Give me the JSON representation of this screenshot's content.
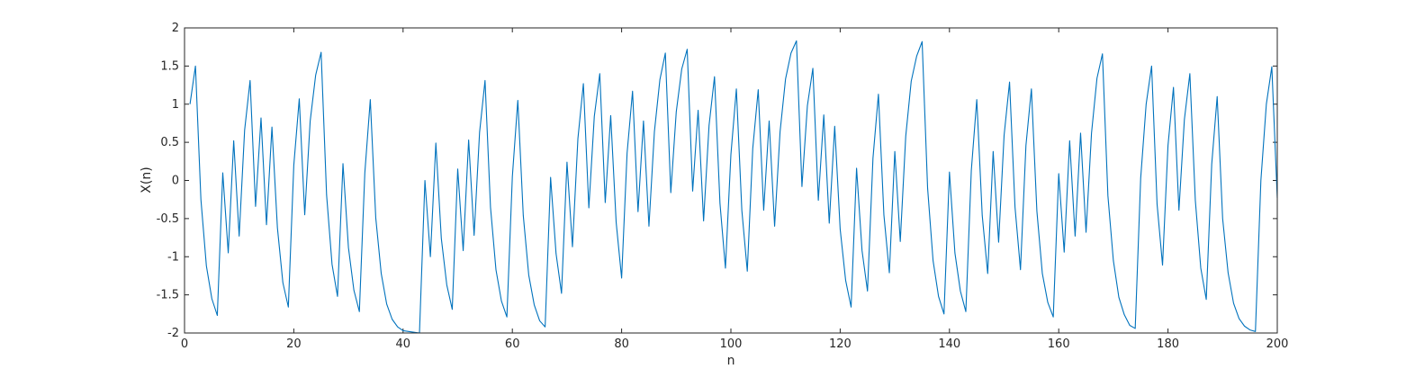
{
  "chart_data": {
    "type": "line",
    "title": "",
    "xlabel": "n",
    "ylabel": "X(n)",
    "xlim": [
      0,
      200
    ],
    "ylim": [
      -2,
      2
    ],
    "xticks": [
      0,
      20,
      40,
      60,
      80,
      100,
      120,
      140,
      160,
      180,
      200
    ],
    "xtick_labels": [
      "0",
      "20",
      "40",
      "60",
      "80",
      "100",
      "120",
      "140",
      "160",
      "180",
      "200"
    ],
    "yticks": [
      -2,
      -1.5,
      -1,
      -0.5,
      0,
      0.5,
      1,
      1.5,
      2
    ],
    "ytick_labels": [
      "-2",
      "-1.5",
      "-1",
      "-0.5",
      "0",
      "0.5",
      "1",
      "1.5",
      "2"
    ],
    "grid": false,
    "box": true,
    "line_color": "#0072bd",
    "axis_color": "#262626",
    "series": [
      {
        "x": [
          1,
          2,
          3,
          4,
          5,
          6,
          7,
          8,
          9,
          10,
          11,
          12,
          13,
          14,
          15,
          16,
          17,
          18,
          19,
          20,
          21,
          22,
          23,
          24,
          25,
          26,
          27,
          28,
          29,
          30,
          31,
          32,
          33,
          34,
          35,
          36,
          37,
          38,
          39,
          40,
          41,
          42,
          43,
          44,
          45,
          46,
          47,
          48,
          49,
          50,
          51,
          52,
          53,
          54,
          55,
          56,
          57,
          58,
          59,
          60,
          61,
          62,
          63,
          64,
          65,
          66,
          67,
          68,
          69,
          70,
          71,
          72,
          73,
          74,
          75,
          76,
          77,
          78,
          79,
          80,
          81,
          82,
          83,
          84,
          85,
          86,
          87,
          88,
          89,
          90,
          91,
          92,
          93,
          94,
          95,
          96,
          97,
          98,
          99,
          100,
          101,
          102,
          103,
          104,
          105,
          106,
          107,
          108,
          109,
          110,
          111,
          112,
          113,
          114,
          115,
          116,
          117,
          118,
          119,
          120,
          121,
          122,
          123,
          124,
          125,
          126,
          127,
          128,
          129,
          130,
          131,
          132,
          133,
          134,
          135,
          136,
          137,
          138,
          139,
          140,
          141,
          142,
          143,
          144,
          145,
          146,
          147,
          148,
          149,
          150,
          151,
          152,
          153,
          154,
          155,
          156,
          157,
          158,
          159,
          160,
          161,
          162,
          163,
          164,
          165,
          166,
          167,
          168,
          169,
          170,
          171,
          172,
          173,
          174,
          175,
          176,
          177,
          178,
          179,
          180,
          181,
          182,
          183,
          184,
          185,
          186,
          187,
          188,
          189,
          190,
          191,
          192,
          193,
          194,
          195,
          196,
          197,
          198,
          199,
          200
        ],
        "y": [
          1.0,
          1.5,
          -0.25,
          -1.12,
          -1.55,
          -1.77,
          0.1,
          -0.95,
          0.52,
          -0.73,
          0.66,
          1.31,
          -0.34,
          0.82,
          -0.58,
          0.7,
          -0.62,
          -1.34,
          -1.66,
          0.2,
          1.07,
          -0.45,
          0.78,
          1.38,
          1.68,
          -0.19,
          -1.1,
          -1.52,
          0.22,
          -0.88,
          -1.44,
          -1.72,
          0.1,
          1.06,
          -0.49,
          -1.22,
          -1.62,
          -1.82,
          -1.92,
          -1.97,
          -1.98,
          -1.99,
          -2.0,
          0.0,
          -1.0,
          0.49,
          -0.76,
          -1.37,
          -1.69,
          0.15,
          -0.92,
          0.53,
          -0.72,
          0.63,
          1.31,
          -0.35,
          -1.17,
          -1.58,
          -1.79,
          0.05,
          1.05,
          -0.46,
          -1.24,
          -1.63,
          -1.84,
          -1.92,
          0.04,
          -0.96,
          -1.48,
          0.24,
          -0.87,
          0.55,
          1.27,
          -0.36,
          0.84,
          1.4,
          -0.29,
          0.85,
          -0.55,
          -1.28,
          0.36,
          1.17,
          -0.41,
          0.78,
          -0.6,
          0.64,
          1.32,
          1.67,
          -0.16,
          0.9,
          1.46,
          1.72,
          -0.14,
          0.92,
          -0.53,
          0.72,
          1.36,
          -0.3,
          -1.15,
          0.34,
          1.2,
          -0.39,
          -1.19,
          0.42,
          1.19,
          -0.39,
          0.78,
          -0.6,
          0.64,
          1.33,
          1.67,
          1.83,
          -0.08,
          0.98,
          1.47,
          -0.26,
          0.86,
          -0.56,
          0.71,
          -0.64,
          -1.31,
          -1.66,
          0.16,
          -0.92,
          -1.45,
          0.29,
          1.13,
          -0.45,
          -1.21,
          0.38,
          -0.8,
          0.58,
          1.3,
          1.63,
          1.82,
          -0.1,
          -1.05,
          -1.52,
          -1.75,
          0.11,
          -0.95,
          -1.45,
          -1.72,
          0.13,
          1.06,
          -0.46,
          -1.22,
          0.38,
          -0.81,
          0.59,
          1.29,
          -0.35,
          -1.17,
          0.46,
          1.2,
          -0.4,
          -1.22,
          -1.6,
          -1.79,
          0.09,
          -0.94,
          0.52,
          -0.73,
          0.62,
          -0.68,
          0.62,
          1.34,
          1.66,
          -0.2,
          -1.05,
          -1.53,
          -1.76,
          -1.9,
          -1.94,
          0.03,
          1.0,
          1.5,
          -0.31,
          -1.11,
          0.46,
          1.22,
          -0.39,
          0.8,
          1.4,
          -0.26,
          -1.15,
          -1.56,
          0.21,
          1.1,
          -0.5,
          -1.21,
          -1.61,
          -1.81,
          -1.91,
          -1.96,
          -1.98,
          0.0,
          1.0,
          1.49,
          -0.23
        ]
      }
    ]
  }
}
